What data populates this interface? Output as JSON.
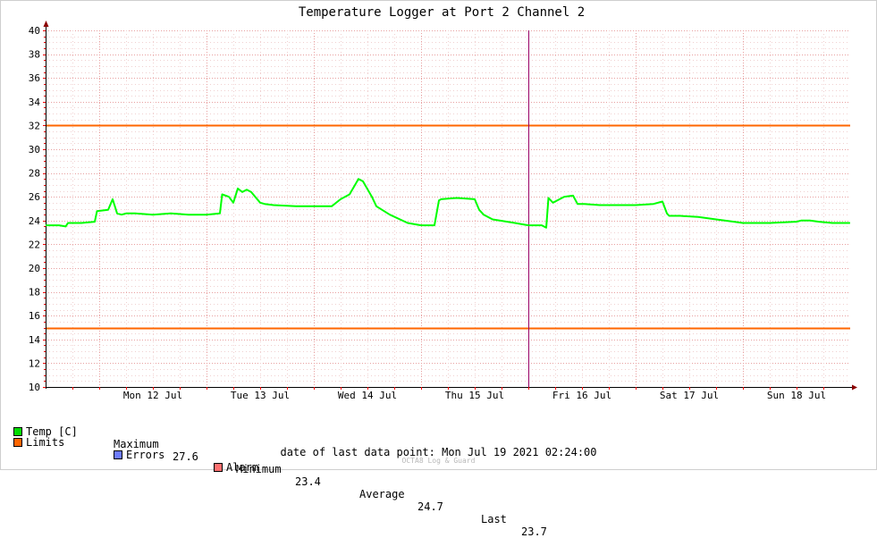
{
  "chart_data": {
    "type": "line",
    "title": "Temperature Logger at Port 2 Channel 2",
    "ylim": [
      10,
      40
    ],
    "y_major_ticks": [
      10,
      12,
      14,
      16,
      18,
      20,
      22,
      24,
      26,
      28,
      30,
      32,
      34,
      36,
      38,
      40
    ],
    "xlim": [
      "2021-07-11 12:00",
      "2021-07-18 23:59"
    ],
    "x_tick_labels": [
      "Mon 12 Jul",
      "Tue 13 Jul",
      "Wed 14 Jul",
      "Thu 15 Jul",
      "Fri 16 Jul",
      "Sat 17 Jul",
      "Sun 18 Jul"
    ],
    "grid": true,
    "series": [
      {
        "name": "Temp [C]",
        "color": "#00ff00",
        "x": [
          "2021-07-11 12:00",
          "2021-07-11 15:00",
          "2021-07-11 16:30",
          "2021-07-11 17:00",
          "2021-07-11 20:00",
          "2021-07-11 23:00",
          "2021-07-11 23:30",
          "2021-07-12 02:00",
          "2021-07-12 03:00",
          "2021-07-12 04:00",
          "2021-07-12 05:00",
          "2021-07-12 06:00",
          "2021-07-12 06:30",
          "2021-07-12 08:00",
          "2021-07-12 12:00",
          "2021-07-12 16:00",
          "2021-07-12 20:00",
          "2021-07-13 00:00",
          "2021-07-13 03:00",
          "2021-07-13 03:30",
          "2021-07-13 05:00",
          "2021-07-13 06:00",
          "2021-07-13 07:00",
          "2021-07-13 08:00",
          "2021-07-13 09:00",
          "2021-07-13 10:00",
          "2021-07-13 12:00",
          "2021-07-13 13:00",
          "2021-07-13 15:00",
          "2021-07-13 20:00",
          "2021-07-14 00:00",
          "2021-07-14 04:00",
          "2021-07-14 06:00",
          "2021-07-14 08:00",
          "2021-07-14 10:00",
          "2021-07-14 11:00",
          "2021-07-14 13:00",
          "2021-07-14 14:00",
          "2021-07-14 17:00",
          "2021-07-14 21:00",
          "2021-07-15 00:00",
          "2021-07-15 03:00",
          "2021-07-15 04:00",
          "2021-07-15 04:30",
          "2021-07-15 08:00",
          "2021-07-15 12:00",
          "2021-07-15 13:00",
          "2021-07-15 14:00",
          "2021-07-15 16:00",
          "2021-07-15 21:00",
          "2021-07-16 00:00",
          "2021-07-16 03:00",
          "2021-07-16 04:00",
          "2021-07-16 04:30",
          "2021-07-16 05:30",
          "2021-07-16 06:00",
          "2021-07-16 08:00",
          "2021-07-16 10:00",
          "2021-07-16 11:00",
          "2021-07-16 11:30",
          "2021-07-16 12:30",
          "2021-07-16 16:00",
          "2021-07-16 20:00",
          "2021-07-17 00:00",
          "2021-07-17 04:00",
          "2021-07-17 06:00",
          "2021-07-17 07:00",
          "2021-07-17 07:30",
          "2021-07-17 10:00",
          "2021-07-17 14:00",
          "2021-07-17 18:00",
          "2021-07-17 22:00",
          "2021-07-18 00:00",
          "2021-07-18 06:00",
          "2021-07-18 12:00",
          "2021-07-18 13:00",
          "2021-07-18 15:00",
          "2021-07-18 17:00",
          "2021-07-18 20:00",
          "2021-07-18 23:59"
        ],
        "y": [
          23.6,
          23.6,
          23.5,
          23.8,
          23.8,
          23.9,
          24.8,
          24.9,
          25.8,
          24.6,
          24.5,
          24.6,
          24.6,
          24.6,
          24.5,
          24.6,
          24.5,
          24.5,
          24.6,
          26.2,
          26.0,
          25.5,
          26.7,
          26.4,
          26.6,
          26.4,
          25.5,
          25.4,
          25.3,
          25.2,
          25.2,
          25.2,
          25.8,
          26.2,
          27.5,
          27.3,
          26.0,
          25.2,
          24.5,
          23.8,
          23.6,
          23.6,
          25.7,
          25.8,
          25.9,
          25.8,
          24.9,
          24.5,
          24.1,
          23.8,
          23.6,
          23.6,
          23.4,
          25.9,
          25.5,
          25.6,
          26.0,
          26.1,
          25.4,
          25.4,
          25.4,
          25.3,
          25.3,
          25.3,
          25.4,
          25.6,
          24.6,
          24.4,
          24.4,
          24.3,
          24.1,
          23.9,
          23.8,
          23.8,
          23.9,
          24.0,
          24.0,
          23.9,
          23.8,
          23.8
        ]
      }
    ],
    "limits": {
      "name": "Limits",
      "color": "#ff6600",
      "values": [
        32,
        15
      ]
    },
    "marker_time": "2021-07-16 00:00"
  },
  "legend": {
    "temp_label": "Temp [C]",
    "maximum_label": "Maximum",
    "maximum_value": "27.6",
    "minimum_label": "Minimum",
    "minimum_value": "23.4",
    "average_label": "Average",
    "average_value": "24.7",
    "last_label": "Last",
    "last_value": "23.7",
    "limits_label": "Limits",
    "errors_label": "Errors",
    "alarm_label": "Alarm",
    "colors": {
      "temp": "#00dd00",
      "limits": "#ff6600",
      "errors": "#6e7cff",
      "alarm": "#ff7070"
    }
  },
  "footer": {
    "date_label": "date of last data point:",
    "date_value": "Mon Jul 19 2021 02:24:00",
    "watermark": "OCTA8 Log & Guard"
  }
}
